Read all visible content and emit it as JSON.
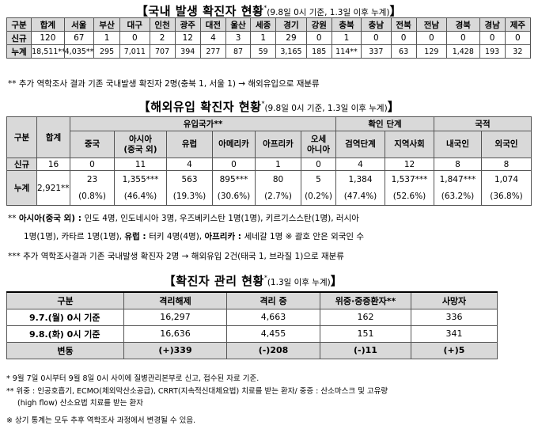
{
  "section1": {
    "title": "【국내 발생 확진자 현황",
    "title_mark": "*",
    "subtitle": "(9.8일 0시 기준, 1.3일 이후 누계)",
    "title_end": "】",
    "headers": [
      "구분",
      "합계",
      "서울",
      "부산",
      "대구",
      "인천",
      "광주",
      "대전",
      "울산",
      "세종",
      "경기",
      "강원",
      "충북",
      "충남",
      "전북",
      "전남",
      "경북",
      "경남",
      "제주"
    ],
    "rows": [
      {
        "label": "신규",
        "values": [
          "120",
          "67",
          "1",
          "0",
          "2",
          "12",
          "4",
          "3",
          "1",
          "29",
          "0",
          "1",
          "0",
          "0",
          "0",
          "0",
          "0",
          "0"
        ]
      },
      {
        "label": "누계",
        "values": [
          "18,511**",
          "4,035**",
          "295",
          "7,011",
          "707",
          "394",
          "277",
          "87",
          "59",
          "3,165",
          "185",
          "114**",
          "337",
          "63",
          "129",
          "1,428",
          "193",
          "32"
        ]
      }
    ],
    "footnote": "** 추가 역학조사 결과 기존 국내발생 확진자 2명(충북 1, 서울 1) → 해외유입으로 재분류"
  },
  "section2": {
    "title": "【해외유입 확진자 현황",
    "title_mark": "*",
    "subtitle": "(9.8일 0시 기준, 1.3일 이후 누계)",
    "title_end": "】",
    "col_label": "구분",
    "col_total": "합계",
    "group_origin": "유입국가**",
    "group_stage": "확인 단계",
    "group_nation": "국적",
    "sub_headers": [
      "중국",
      "아시아\n(중국 외)",
      "유럽",
      "아메리카",
      "아프리카",
      "오세\n아니아",
      "검역단계",
      "지역사회",
      "내국인",
      "외국인"
    ],
    "new_label": "신규",
    "new_total": "16",
    "new_values": [
      "0",
      "11",
      "4",
      "0",
      "1",
      "0",
      "4",
      "12",
      "8",
      "8"
    ],
    "cum_label": "누계",
    "cum_total": "2,921***",
    "cum_values": [
      "23",
      "1,355***",
      "563",
      "895***",
      "80",
      "5",
      "1,384",
      "1,537***",
      "1,847***",
      "1,074"
    ],
    "cum_pct": [
      "(0.8%)",
      "(46.4%)",
      "(19.3%)",
      "(30.6%)",
      "(2.7%)",
      "(0.2%)",
      "(47.4%)",
      "(52.6%)",
      "(63.2%)",
      "(36.8%)"
    ],
    "note1_a": "** ",
    "note1_b": "아시아(중국 외) : ",
    "note1_c": "인도 4명, 인도네시아 3명, 우즈베키스탄 1명(1명), 키르기스스탄(1명), 러시아",
    "note2_a": "1명(1명), 카타르 1명(1명), ",
    "note2_b": "유럽 : ",
    "note2_c": "터키 4명(4명), ",
    "note2_d": "아프리카 : ",
    "note2_e": "세네갈 1명  ※ 괄호 안은 외국인 수",
    "note3": "*** 추가 역학조사결과 기존 국내발생 확진자 2명 → 해외유입 2건(태국 1, 브라질 1)으로 재분류"
  },
  "section3": {
    "title": "【확진자 관리 현황",
    "title_mark": "*",
    "subtitle": "(1.3일 이후 누계)",
    "title_end": "】",
    "headers": [
      "구분",
      "격리해제",
      "격리 중",
      "위중·중증환자**",
      "사망자"
    ],
    "rows": [
      {
        "label": "9.7.(월) 0시 기준",
        "values": [
          "16,297",
          "4,663",
          "162",
          "336"
        ]
      },
      {
        "label": "9.8.(화) 0시 기준",
        "values": [
          "16,636",
          "4,455",
          "151",
          "341"
        ]
      },
      {
        "label": "변동",
        "values": [
          "(+)339",
          "(-)208",
          "(-)11",
          "(+)5"
        ]
      }
    ],
    "fn1": "* 9월 7일 0시부터 9월 8일 0시 사이에 질병관리본부로 신고, 접수된 자료 기준.",
    "fn2": "** 위중 : 인공호흡기, ECMO(체외막산소공급), CRRT(지속적신대체요법) 치료를 받는 환자/ 중증 : 산소마스크 및 고유량",
    "fn3": "(high flow) 산소요법 치료를 받는 환자",
    "fn4": "※ 상기 통계는 모두 추후 역학조사 과정에서 변경될 수 있음."
  }
}
